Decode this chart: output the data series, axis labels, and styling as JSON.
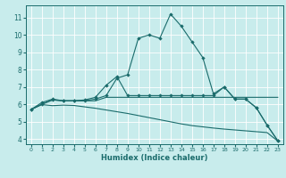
{
  "xlabel": "Humidex (Indice chaleur)",
  "bg_color": "#c8ecec",
  "grid_color": "#ffffff",
  "line_color": "#1a6b6b",
  "xlim": [
    -0.5,
    23.5
  ],
  "ylim": [
    3.7,
    11.7
  ],
  "yticks": [
    4,
    5,
    6,
    7,
    8,
    9,
    10,
    11
  ],
  "xticks": [
    0,
    1,
    2,
    3,
    4,
    5,
    6,
    7,
    8,
    9,
    10,
    11,
    12,
    13,
    14,
    15,
    16,
    17,
    18,
    19,
    20,
    21,
    22,
    23
  ],
  "line1_x": [
    0,
    1,
    2,
    3,
    4,
    5,
    6,
    7,
    8,
    9,
    10,
    11,
    12,
    13,
    14,
    15,
    16,
    17,
    18,
    19,
    20,
    21,
    22,
    23
  ],
  "line1_y": [
    5.7,
    6.1,
    6.3,
    6.2,
    6.2,
    6.2,
    6.3,
    6.5,
    7.5,
    7.7,
    9.8,
    10.0,
    9.8,
    11.2,
    10.5,
    9.6,
    8.7,
    6.6,
    7.0,
    6.3,
    6.3,
    5.8,
    4.8,
    3.9
  ],
  "line2_x": [
    0,
    1,
    2,
    3,
    4,
    5,
    6,
    7,
    8,
    9,
    10,
    11,
    12,
    13,
    14,
    15,
    16,
    17,
    18,
    19,
    20,
    21,
    22,
    23
  ],
  "line2_y": [
    5.7,
    6.0,
    6.25,
    6.2,
    6.2,
    6.2,
    6.2,
    6.4,
    6.4,
    6.4,
    6.4,
    6.4,
    6.4,
    6.4,
    6.4,
    6.4,
    6.4,
    6.4,
    6.4,
    6.4,
    6.4,
    6.4,
    6.4,
    6.4
  ],
  "line3_x": [
    0,
    1,
    2,
    3,
    4,
    5,
    6,
    7,
    8,
    9,
    10,
    11,
    12,
    13,
    14,
    15,
    16,
    17,
    18,
    19,
    20,
    21,
    22,
    23
  ],
  "line3_y": [
    5.7,
    6.0,
    6.25,
    6.2,
    6.2,
    6.25,
    6.4,
    7.1,
    7.6,
    6.5,
    6.5,
    6.5,
    6.5,
    6.5,
    6.5,
    6.5,
    6.5,
    6.5,
    7.0,
    6.3,
    6.3,
    5.8,
    4.8,
    3.9
  ],
  "line4_x": [
    0,
    1,
    2,
    3,
    4,
    5,
    6,
    7,
    8,
    9,
    10,
    11,
    12,
    13,
    14,
    15,
    16,
    17,
    18,
    19,
    20,
    21,
    22,
    23
  ],
  "line4_y": [
    5.7,
    5.98,
    5.92,
    5.95,
    5.93,
    5.85,
    5.77,
    5.67,
    5.57,
    5.47,
    5.35,
    5.23,
    5.11,
    4.99,
    4.87,
    4.77,
    4.7,
    4.63,
    4.57,
    4.52,
    4.47,
    4.42,
    4.37,
    3.88
  ]
}
